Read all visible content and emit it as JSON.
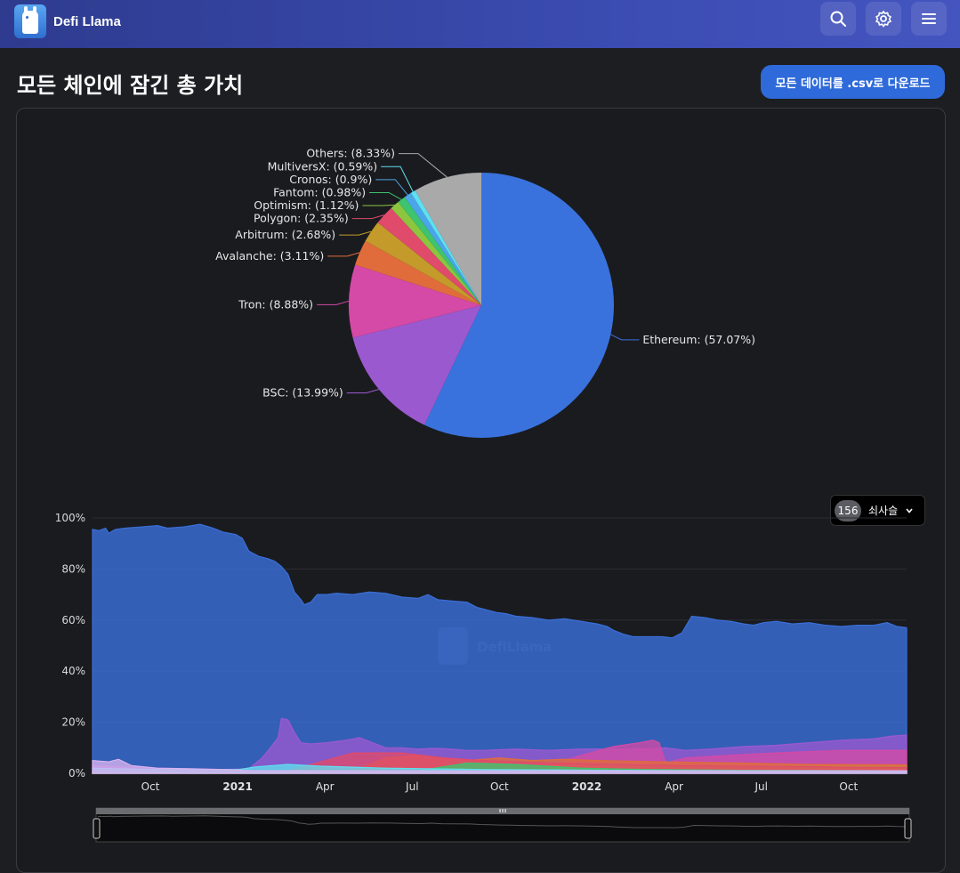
{
  "header": {
    "brand_name": "Defi Llama",
    "icons": [
      "search-icon",
      "gear-icon",
      "menu-icon"
    ]
  },
  "page": {
    "title": "모든 체인에 잠긴 총 가치",
    "download_label": "모든 데이터를 .csv로 다운로드"
  },
  "group_select": {
    "count": "156",
    "label": "쇠사슬"
  },
  "watermark": "DefiLlama",
  "chart_data": [
    {
      "type": "pie",
      "slices": [
        {
          "label": "Ethereum: (57.07%)",
          "name": "Ethereum",
          "value": 57.07,
          "color": "#3a72dd"
        },
        {
          "label": "BSC: (13.99%)",
          "name": "BSC",
          "value": 13.99,
          "color": "#9b59d0"
        },
        {
          "label": "Tron: (8.88%)",
          "name": "Tron",
          "value": 8.88,
          "color": "#d44aa6"
        },
        {
          "label": "Avalanche: (3.11%)",
          "name": "Avalanche",
          "value": 3.11,
          "color": "#e06c3b"
        },
        {
          "label": "Arbitrum: (2.68%)",
          "name": "Arbitrum",
          "value": 2.68,
          "color": "#c49a2a"
        },
        {
          "label": "Polygon: (2.35%)",
          "name": "Polygon",
          "value": 2.35,
          "color": "#e04a6b"
        },
        {
          "label": "Optimism: (1.12%)",
          "name": "Optimism",
          "value": 1.12,
          "color": "#8cc63f"
        },
        {
          "label": "Fantom: (0.98%)",
          "name": "Fantom",
          "value": 0.98,
          "color": "#3ec46d"
        },
        {
          "label": "Cronos: (0.9%)",
          "name": "Cronos",
          "value": 0.9,
          "color": "#4aa6e8"
        },
        {
          "label": "MultiversX: (0.59%)",
          "name": "MultiversX",
          "value": 0.59,
          "color": "#5ee0f0"
        },
        {
          "label": "Others: (8.33%)",
          "name": "Others",
          "value": 8.33,
          "color": "#a9a9a9"
        }
      ]
    },
    {
      "type": "area",
      "stacked_percent": true,
      "ylim": [
        0,
        100
      ],
      "y_ticks": [
        "0%",
        "20%",
        "40%",
        "60%",
        "80%",
        "100%"
      ],
      "x_ticks": [
        {
          "label": "Oct",
          "bold": false
        },
        {
          "label": "2021",
          "bold": true
        },
        {
          "label": "Apr",
          "bold": false
        },
        {
          "label": "Jul",
          "bold": false
        },
        {
          "label": "Oct",
          "bold": false
        },
        {
          "label": "2022",
          "bold": true
        },
        {
          "label": "Apr",
          "bold": false
        },
        {
          "label": "Jul",
          "bold": false
        },
        {
          "label": "Oct",
          "bold": false
        }
      ],
      "x_range": [
        "2020-08",
        "2022-11"
      ],
      "series": [
        {
          "name": "Ethereum",
          "color": "#3a6fd8",
          "points": [
            [
              0,
              95.5
            ],
            [
              2,
              95
            ],
            [
              4,
              96
            ],
            [
              5,
              94
            ],
            [
              7,
              95.5
            ],
            [
              10,
              96
            ],
            [
              15,
              96.5
            ],
            [
              20,
              97
            ],
            [
              23,
              96
            ],
            [
              28,
              96.5
            ],
            [
              33,
              97.5
            ],
            [
              37,
              96
            ],
            [
              40,
              94.5
            ],
            [
              44,
              93.5
            ],
            [
              46,
              92
            ],
            [
              48,
              87
            ],
            [
              51,
              85
            ],
            [
              54,
              84
            ],
            [
              56,
              83
            ],
            [
              58,
              81
            ],
            [
              60,
              78
            ],
            [
              62,
              71
            ],
            [
              64,
              68
            ],
            [
              65,
              66
            ],
            [
              67,
              67
            ],
            [
              69,
              70
            ],
            [
              72,
              70
            ],
            [
              75,
              70.5
            ],
            [
              80,
              70
            ],
            [
              85,
              71
            ],
            [
              90,
              70.5
            ],
            [
              95,
              69
            ],
            [
              100,
              68.5
            ],
            [
              103,
              70
            ],
            [
              106,
              68
            ],
            [
              110,
              67.5
            ],
            [
              115,
              67
            ],
            [
              118,
              65
            ],
            [
              121,
              64
            ],
            [
              124,
              63
            ],
            [
              127,
              62.5
            ],
            [
              130,
              61.5
            ],
            [
              135,
              61
            ],
            [
              140,
              60
            ],
            [
              145,
              60.5
            ],
            [
              150,
              59.5
            ],
            [
              155,
              58.5
            ],
            [
              158,
              57.5
            ],
            [
              160,
              56
            ],
            [
              163,
              54.5
            ],
            [
              166,
              53.5
            ],
            [
              170,
              53.5
            ],
            [
              175,
              53.5
            ],
            [
              178,
              53
            ],
            [
              181,
              55
            ],
            [
              184,
              61.5
            ],
            [
              188,
              61
            ],
            [
              192,
              60
            ],
            [
              196,
              59.5
            ],
            [
              200,
              58.5
            ],
            [
              203,
              58
            ],
            [
              206,
              59
            ],
            [
              210,
              59.5
            ],
            [
              215,
              58.5
            ],
            [
              220,
              59
            ],
            [
              225,
              58
            ],
            [
              230,
              57.5
            ],
            [
              235,
              58
            ],
            [
              240,
              58
            ],
            [
              244,
              59
            ],
            [
              247,
              57.5
            ],
            [
              250,
              57
            ]
          ]
        },
        {
          "name": "BSC",
          "color": "#9b59d0",
          "points": [
            [
              0,
              3
            ],
            [
              20,
              2
            ],
            [
              40,
              1.5
            ],
            [
              48,
              1.8
            ],
            [
              52,
              6
            ],
            [
              54,
              9
            ],
            [
              57,
              14
            ],
            [
              58,
              21.5
            ],
            [
              60,
              21
            ],
            [
              62,
              16
            ],
            [
              64,
              12
            ],
            [
              67,
              11.5
            ],
            [
              72,
              12
            ],
            [
              78,
              13
            ],
            [
              82,
              14
            ],
            [
              85,
              12.5
            ],
            [
              90,
              10
            ],
            [
              95,
              10
            ],
            [
              100,
              9.5
            ],
            [
              105,
              9.8
            ],
            [
              110,
              9.5
            ],
            [
              115,
              9
            ],
            [
              120,
              9
            ],
            [
              130,
              9.5
            ],
            [
              140,
              9
            ],
            [
              150,
              9.5
            ],
            [
              160,
              9.5
            ],
            [
              170,
              9.5
            ],
            [
              176,
              10
            ],
            [
              182,
              9
            ],
            [
              190,
              9.5
            ],
            [
              200,
              10.5
            ],
            [
              210,
              11
            ],
            [
              220,
              12
            ],
            [
              230,
              13
            ],
            [
              240,
              13.5
            ],
            [
              245,
              14.5
            ],
            [
              250,
              15
            ]
          ]
        },
        {
          "name": "Tron",
          "color": "#d44aa6",
          "points": [
            [
              0,
              1
            ],
            [
              60,
              1
            ],
            [
              70,
              2
            ],
            [
              80,
              2.5
            ],
            [
              100,
              2
            ],
            [
              120,
              2.5
            ],
            [
              140,
              3
            ],
            [
              150,
              7
            ],
            [
              160,
              10.5
            ],
            [
              168,
              12
            ],
            [
              172,
              13
            ],
            [
              174,
              12
            ],
            [
              176,
              4
            ],
            [
              182,
              6
            ],
            [
              195,
              7
            ],
            [
              210,
              8
            ],
            [
              230,
              9
            ],
            [
              250,
              9
            ]
          ]
        },
        {
          "name": "Avalanche",
          "color": "#e06c3b",
          "points": [
            [
              0,
              0.5
            ],
            [
              80,
              1
            ],
            [
              90,
              6
            ],
            [
              100,
              7
            ],
            [
              108,
              6
            ],
            [
              115,
              5
            ],
            [
              125,
              6
            ],
            [
              135,
              5
            ],
            [
              145,
              5.5
            ],
            [
              155,
              5
            ],
            [
              175,
              4.5
            ],
            [
              200,
              4
            ],
            [
              220,
              3.5
            ],
            [
              250,
              3.3
            ]
          ]
        },
        {
          "name": "Arbitrum",
          "color": "#c49a2a",
          "points": [
            [
              0,
              0.3
            ],
            [
              100,
              0.5
            ],
            [
              110,
              3
            ],
            [
              120,
              3.5
            ],
            [
              140,
              3
            ],
            [
              160,
              3.2
            ],
            [
              190,
              2.9
            ],
            [
              220,
              2.7
            ],
            [
              250,
              2.7
            ]
          ]
        },
        {
          "name": "Polygon",
          "color": "#e04a6b",
          "points": [
            [
              0,
              0.5
            ],
            [
              60,
              1
            ],
            [
              80,
              8
            ],
            [
              95,
              8
            ],
            [
              108,
              6
            ],
            [
              120,
              5
            ],
            [
              140,
              4
            ],
            [
              160,
              3.5
            ],
            [
              180,
              3
            ],
            [
              200,
              2.8
            ],
            [
              230,
              2.5
            ],
            [
              250,
              2.4
            ]
          ]
        },
        {
          "name": "Fantom",
          "color": "#3ec46d",
          "points": [
            [
              0,
              0.2
            ],
            [
              100,
              1
            ],
            [
              115,
              4
            ],
            [
              130,
              3.5
            ],
            [
              150,
              2
            ],
            [
              170,
              1.5
            ],
            [
              200,
              1.2
            ],
            [
              250,
              1
            ]
          ]
        },
        {
          "name": "MultiversX",
          "color": "#5ee0f0",
          "points": [
            [
              0,
              2
            ],
            [
              20,
              1.5
            ],
            [
              45,
              1.5
            ],
            [
              50,
              2.5
            ],
            [
              60,
              3.5
            ],
            [
              70,
              2.8
            ],
            [
              90,
              2
            ],
            [
              120,
              1.5
            ],
            [
              160,
              1.2
            ],
            [
              200,
              1
            ],
            [
              250,
              0.9
            ]
          ]
        },
        {
          "name": "Others",
          "color": "#d8b4f0",
          "points": [
            [
              0,
              5
            ],
            [
              5,
              4.5
            ],
            [
              8,
              5.5
            ],
            [
              12,
              3
            ],
            [
              20,
              2
            ],
            [
              30,
              1.8
            ],
            [
              40,
              1.5
            ],
            [
              50,
              1
            ],
            [
              60,
              1
            ],
            [
              100,
              1
            ],
            [
              150,
              1
            ],
            [
              200,
              1
            ],
            [
              250,
              1
            ]
          ]
        }
      ]
    }
  ]
}
